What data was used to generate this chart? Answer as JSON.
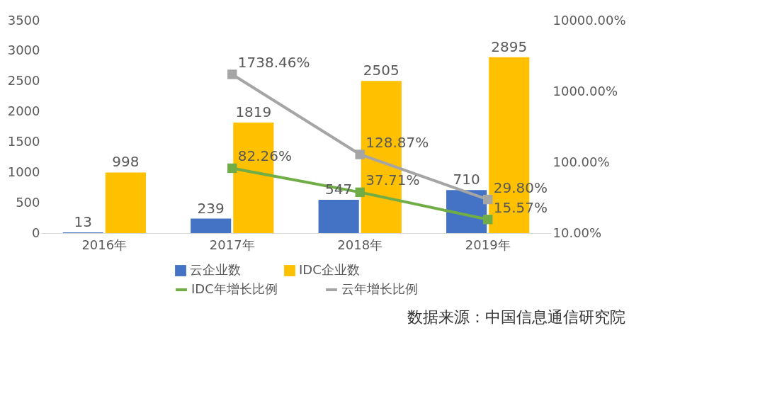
{
  "chart_data": {
    "type": "bar",
    "categories": [
      "2016年",
      "2017年",
      "2018年",
      "2019年"
    ],
    "series": [
      {
        "name": "云企业数",
        "color": "#4472c4",
        "values": [
          13,
          239,
          547,
          710
        ],
        "value_labels": [
          "13",
          "239",
          "547",
          "710"
        ]
      },
      {
        "name": "IDC企业数",
        "color": "#ffc000",
        "values": [
          998,
          1819,
          2505,
          2895
        ],
        "value_labels": [
          "998",
          "1819",
          "2505",
          "2895"
        ]
      },
      {
        "name": "IDC年增长比例",
        "type": "line",
        "axis": "y2",
        "color": "#70ad47",
        "values": [
          null,
          82.26,
          37.71,
          15.57
        ],
        "value_labels": [
          null,
          "82.26%",
          "37.71%",
          "15.57%"
        ]
      },
      {
        "name": "云年增长比例",
        "type": "line",
        "axis": "y2",
        "color": "#a5a5a5",
        "values": [
          null,
          1738.46,
          128.87,
          29.8
        ],
        "value_labels": [
          null,
          "1738.46%",
          "128.87%",
          "29.80%"
        ]
      }
    ],
    "ylim": [
      0,
      3500
    ],
    "yticks": [
      0,
      500,
      1000,
      1500,
      2000,
      2500,
      3000,
      3500
    ],
    "y2lim": [
      10,
      10000
    ],
    "y2ticks": [
      {
        "value": 10,
        "label": "10.00%"
      },
      {
        "value": 100,
        "label": "100.00%"
      },
      {
        "value": 1000,
        "label": "1000.00%"
      },
      {
        "value": 10000,
        "label": "10000.00%"
      }
    ],
    "log": "y2",
    "grid": false,
    "legend": "bottom",
    "marker": "square",
    "line_style": "solid",
    "annotations": [
      "数据来源：中国信息通信研究院"
    ]
  }
}
